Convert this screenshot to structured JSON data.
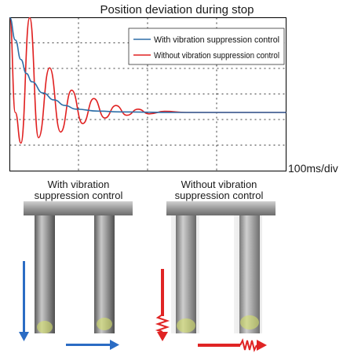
{
  "chart_data": {
    "type": "line",
    "title": "Position deviation during stop",
    "time_scale_label": "100ms/div",
    "xlabel": "",
    "ylabel": "",
    "grid": true,
    "legend_position": "top-right",
    "series": [
      {
        "name": "With vibration suppression control",
        "color": "#2e6fa8",
        "x": [
          0.0,
          0.05,
          0.1,
          0.15,
          0.2,
          0.3,
          0.4,
          0.5,
          0.6,
          0.8,
          1.0,
          1.5,
          2.0,
          2.5
        ],
        "y": [
          3.4,
          2.6,
          1.9,
          1.4,
          1.1,
          0.7,
          0.45,
          0.25,
          0.12,
          0.05,
          0.02,
          0.0,
          0.0,
          0.0
        ]
      },
      {
        "name": "Without vibration suppression control",
        "color": "#e02020",
        "x": [
          0.0,
          0.05,
          0.1,
          0.18,
          0.26,
          0.36,
          0.46,
          0.56,
          0.66,
          0.76,
          0.86,
          0.96,
          1.06,
          1.16,
          1.26,
          1.4,
          1.6,
          2.0,
          2.5
        ],
        "y": [
          3.4,
          0.0,
          -1.1,
          3.8,
          -0.9,
          1.6,
          -0.7,
          0.8,
          -0.4,
          0.5,
          -0.2,
          0.25,
          -0.1,
          0.12,
          -0.05,
          0.04,
          0.0,
          0.0,
          0.0
        ]
      }
    ]
  },
  "captions": {
    "with_control": [
      "With vibration",
      "suppression control"
    ],
    "without_control": [
      "Without vibration",
      "suppression control"
    ]
  },
  "colors": {
    "blue_arrow": "#2b6cc4",
    "red_arrow": "#e02424",
    "tool": "#8a8a8a",
    "bar": "#9a9a9a"
  }
}
